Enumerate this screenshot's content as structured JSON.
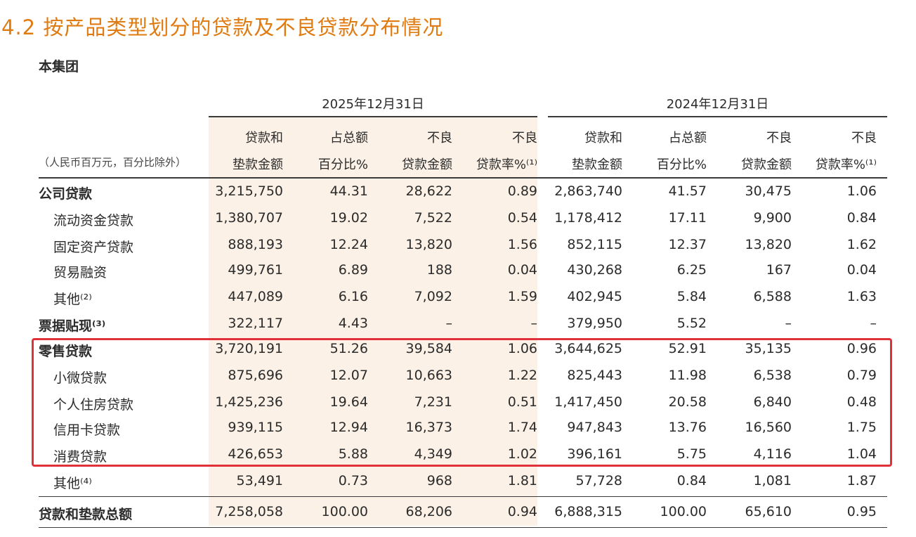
{
  "title": "4.2 按产品类型划分的贷款及不良贷款分布情况",
  "subtitle": "本集团",
  "unit": "（人民币百万元，百分比除外）",
  "periods": [
    "2025年12月31日",
    "2024年12月31日"
  ],
  "headers": [
    [
      "贷款和",
      "垫款金额"
    ],
    [
      "占总额",
      "百分比%"
    ],
    [
      "不良",
      "贷款金额"
    ],
    [
      "不良",
      "贷款率%⁽¹⁾"
    ],
    [
      "贷款和",
      "垫款金额"
    ],
    [
      "占总额",
      "百分比%"
    ],
    [
      "不良",
      "贷款金额"
    ],
    [
      "不良",
      "贷款率%⁽¹⁾"
    ]
  ],
  "rows": [
    {
      "label": "公司贷款",
      "values": [
        "3,215,750",
        "44.31",
        "28,622",
        "0.89",
        "2,863,740",
        "41.57",
        "30,475",
        "1.06"
      ]
    },
    {
      "label": "流动资金贷款",
      "values": [
        "1,380,707",
        "19.02",
        "7,522",
        "0.54",
        "1,178,412",
        "17.11",
        "9,900",
        "0.84"
      ]
    },
    {
      "label": "固定资产贷款",
      "values": [
        "888,193",
        "12.24",
        "13,820",
        "1.56",
        "852,115",
        "12.37",
        "13,820",
        "1.62"
      ]
    },
    {
      "label": "贸易融资",
      "values": [
        "499,761",
        "6.89",
        "188",
        "0.04",
        "430,268",
        "6.25",
        "167",
        "0.04"
      ]
    },
    {
      "label": "其他⁽²⁾",
      "values": [
        "447,089",
        "6.16",
        "7,092",
        "1.59",
        "402,945",
        "5.84",
        "6,588",
        "1.63"
      ]
    },
    {
      "label": "票据贴现⁽³⁾",
      "values": [
        "322,117",
        "4.43",
        "–",
        "–",
        "379,950",
        "5.52",
        "–",
        "–"
      ]
    },
    {
      "label": "零售贷款",
      "values": [
        "3,720,191",
        "51.26",
        "39,584",
        "1.06",
        "3,644,625",
        "52.91",
        "35,135",
        "0.96"
      ]
    },
    {
      "label": "小微贷款",
      "values": [
        "875,696",
        "12.07",
        "10,663",
        "1.22",
        "825,443",
        "11.98",
        "6,538",
        "0.79"
      ]
    },
    {
      "label": "个人住房贷款",
      "values": [
        "1,425,236",
        "19.64",
        "7,231",
        "0.51",
        "1,417,450",
        "20.58",
        "6,840",
        "0.48"
      ]
    },
    {
      "label": "信用卡贷款",
      "values": [
        "939,115",
        "12.94",
        "16,373",
        "1.74",
        "947,843",
        "13.76",
        "16,560",
        "1.75"
      ]
    },
    {
      "label": "消费贷款",
      "values": [
        "426,653",
        "5.88",
        "4,349",
        "1.02",
        "396,161",
        "5.75",
        "4,116",
        "1.04"
      ]
    },
    {
      "label": "其他⁽⁴⁾",
      "values": [
        "53,491",
        "0.73",
        "968",
        "1.81",
        "57,728",
        "0.84",
        "1,081",
        "1.87"
      ]
    },
    {
      "label": "贷款和垫款总额",
      "values": [
        "7,258,058",
        "100.00",
        "68,206",
        "0.94",
        "6,888,315",
        "100.00",
        "65,610",
        "0.95"
      ]
    }
  ],
  "colors": {
    "title": "#e07b12",
    "shade": "#fbf1e6",
    "highlight": "#e0303a"
  }
}
